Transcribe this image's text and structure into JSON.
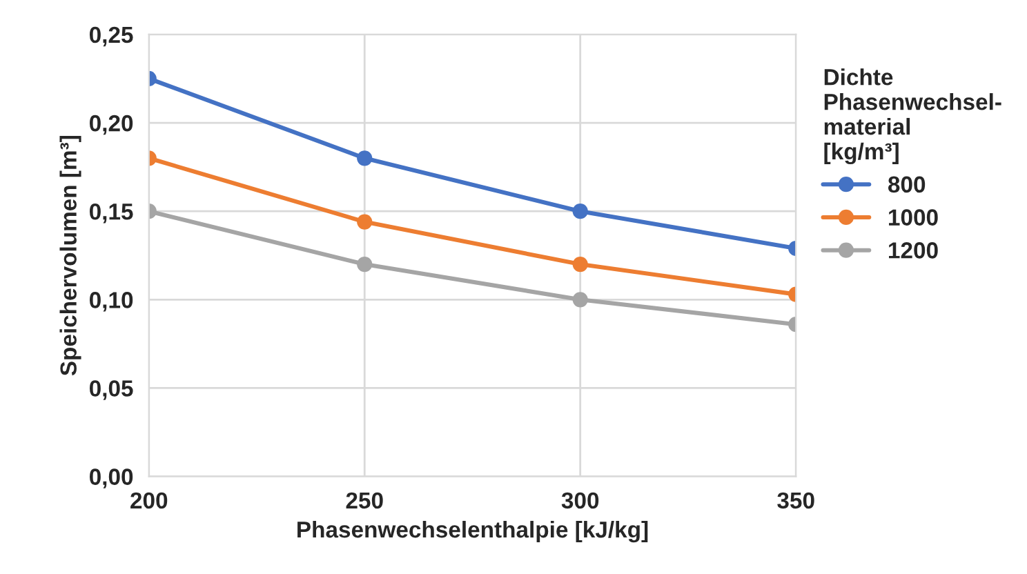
{
  "chart_data": {
    "type": "line",
    "xlabel": "Phasenwechselenthalpie [kJ/kg]",
    "ylabel": "Speichervolumen [m³]",
    "legend_title": "Dichte\nPhasenwechsel-\nmaterial\n[kg/m³]",
    "x": [
      200,
      250,
      300,
      350
    ],
    "series": [
      {
        "name": "800",
        "color": "#4472c4",
        "values": [
          0.225,
          0.18,
          0.15,
          0.129
        ]
      },
      {
        "name": "1000",
        "color": "#ed7d31",
        "values": [
          0.18,
          0.144,
          0.12,
          0.103
        ]
      },
      {
        "name": "1200",
        "color": "#a5a5a5",
        "values": [
          0.15,
          0.12,
          0.1,
          0.086
        ]
      }
    ],
    "xlim": [
      200,
      350
    ],
    "xticks": [
      200,
      250,
      300,
      350
    ],
    "ylim": [
      0,
      0.25
    ],
    "yticks": [
      {
        "value": 0,
        "label": "0,00"
      },
      {
        "value": 0.05,
        "label": "0,05"
      },
      {
        "value": 0.1,
        "label": "0,10"
      },
      {
        "value": 0.15,
        "label": "0,15"
      },
      {
        "value": 0.2,
        "label": "0,20"
      },
      {
        "value": 0.25,
        "label": "0,25"
      }
    ],
    "grid": true,
    "legend": "right",
    "marker": "circle",
    "line_style": "solid"
  }
}
